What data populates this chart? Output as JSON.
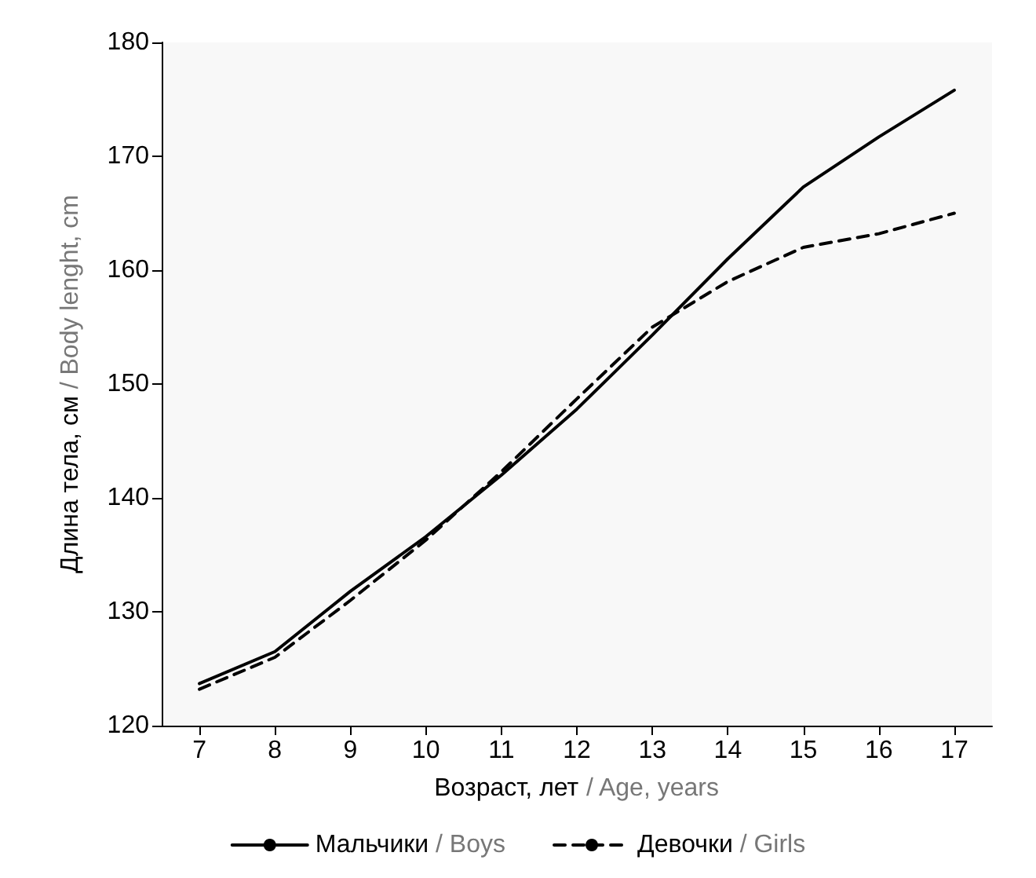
{
  "chart_data": {
    "type": "line",
    "xlabel": "Возраст, лет / Age, years",
    "ylabel": "Длина тела, см / Body lenght, cm",
    "x": [
      7,
      8,
      9,
      10,
      11,
      12,
      13,
      14,
      15,
      16,
      17
    ],
    "series": [
      {
        "name": "Мальчики / Boys",
        "color": "#000000",
        "line_style": "solid",
        "values": [
          123.7,
          126.5,
          131.8,
          136.6,
          142,
          147.8,
          154.3,
          161,
          167.3,
          171.7,
          175.8
        ]
      },
      {
        "name": "Девочки / Girls",
        "color": "#000000",
        "line_style": "dashed",
        "values": [
          123.2,
          126,
          131,
          136.3,
          142.3,
          148.7,
          155,
          159,
          162,
          163.2,
          165
        ]
      }
    ],
    "xlim": [
      6.5,
      17.5
    ],
    "xticks": [
      7,
      8,
      9,
      10,
      11,
      12,
      13,
      14,
      15,
      16,
      17
    ],
    "ylim": [
      120,
      180
    ],
    "yticks": [
      120,
      130,
      140,
      150,
      160,
      170,
      180
    ],
    "grid": false,
    "legend": "bottom",
    "marker": "none"
  }
}
